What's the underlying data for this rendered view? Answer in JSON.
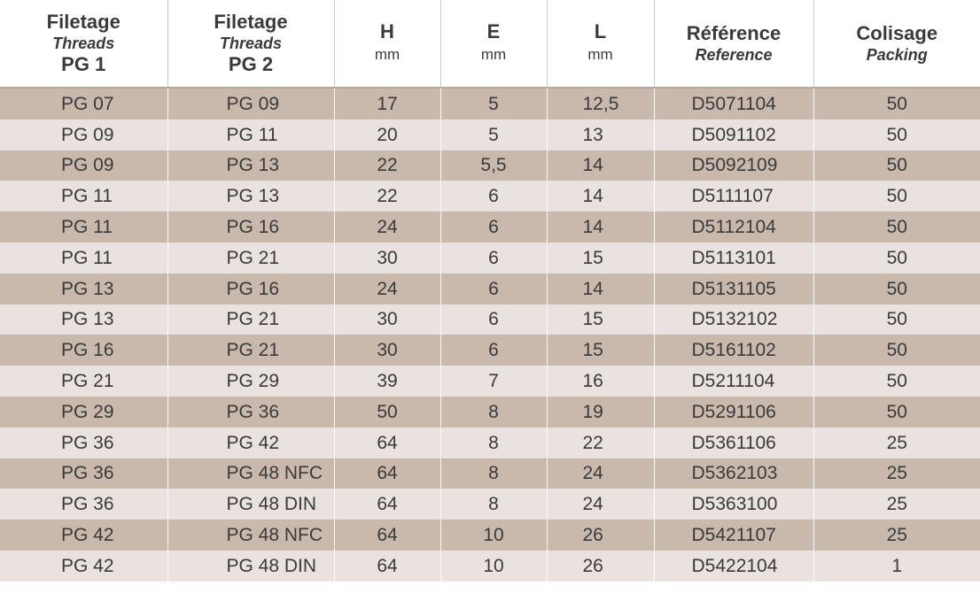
{
  "headers": [
    {
      "main": "Filetage",
      "sub": "Threads",
      "extra": "PG 1"
    },
    {
      "main": "Filetage",
      "sub": "Threads",
      "extra": "PG 2"
    },
    {
      "main": "H",
      "unit": "mm"
    },
    {
      "main": "E",
      "unit": "mm"
    },
    {
      "main": "L",
      "unit": "mm"
    },
    {
      "main": "Référence",
      "sub": "Reference"
    },
    {
      "main": "Colisage",
      "sub": "Packing"
    }
  ],
  "rows": [
    [
      "PG 07",
      "PG 09",
      "17",
      "5",
      "12,5",
      "D5071104",
      "50"
    ],
    [
      "PG 09",
      "PG 11",
      "20",
      "5",
      "13",
      "D5091102",
      "50"
    ],
    [
      "PG 09",
      "PG 13",
      "22",
      "5,5",
      "14",
      "D5092109",
      "50"
    ],
    [
      "PG 11",
      "PG 13",
      "22",
      "6",
      "14",
      "D5111107",
      "50"
    ],
    [
      "PG 11",
      "PG 16",
      "24",
      "6",
      "14",
      "D5112104",
      "50"
    ],
    [
      "PG 11",
      "PG 21",
      "30",
      "6",
      "15",
      "D5113101",
      "50"
    ],
    [
      "PG 13",
      "PG 16",
      "24",
      "6",
      "14",
      "D5131105",
      "50"
    ],
    [
      "PG 13",
      "PG 21",
      "30",
      "6",
      "15",
      "D5132102",
      "50"
    ],
    [
      "PG 16",
      "PG 21",
      "30",
      "6",
      "15",
      "D5161102",
      "50"
    ],
    [
      "PG 21",
      "PG 29",
      "39",
      "7",
      "16",
      "D5211104",
      "50"
    ],
    [
      "PG 29",
      "PG 36",
      "50",
      "8",
      "19",
      "D5291106",
      "50"
    ],
    [
      "PG 36",
      "PG 42",
      "64",
      "8",
      "22",
      "D5361106",
      "25"
    ],
    [
      "PG 36",
      "PG 48 NFC",
      "64",
      "8",
      "24",
      "D5362103",
      "25"
    ],
    [
      "PG 36",
      "PG 48 DIN",
      "64",
      "8",
      "24",
      "D5363100",
      "25"
    ],
    [
      "PG 42",
      "PG 48 NFC",
      "64",
      "10",
      "26",
      "D5421107",
      "25"
    ],
    [
      "PG 42",
      "PG 48 DIN",
      "64",
      "10",
      "26",
      "D5422104",
      "1"
    ]
  ],
  "colors": {
    "row_dark": "#c9b9ad",
    "row_light": "#e9e2df",
    "text": "#3a3a3a"
  }
}
